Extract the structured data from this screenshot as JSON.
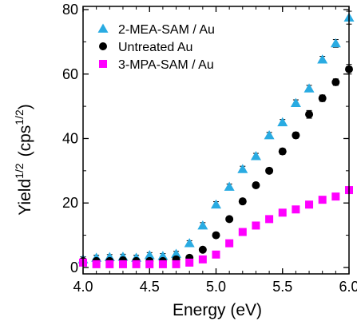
{
  "chart_data": {
    "type": "scatter",
    "xlabel": "Energy (eV)",
    "ylabel": {
      "base": "Yield",
      "base_sup": "1/2",
      "unit": "(cps",
      "unit_sup": "1/2",
      "close": ")"
    },
    "xlim": [
      4.0,
      6.0
    ],
    "ylim": [
      -2,
      81
    ],
    "xticks": [
      4.0,
      4.5,
      5.0,
      5.5,
      6.0
    ],
    "xtick_labels": [
      "4.0",
      "4.5",
      "5.0",
      "5.5",
      "6.0"
    ],
    "yticks": [
      0,
      20,
      40,
      60,
      80
    ],
    "ytick_labels": [
      "0",
      "20",
      "40",
      "60",
      "80"
    ],
    "grid": false,
    "legend_position": "top-left",
    "x": [
      4.0,
      4.1,
      4.2,
      4.3,
      4.4,
      4.5,
      4.6,
      4.7,
      4.8,
      4.9,
      5.0,
      5.1,
      5.2,
      5.3,
      5.4,
      5.5,
      5.6,
      5.7,
      5.8,
      5.9,
      6.0
    ],
    "series": [
      {
        "name": "2-MEA-SAM / Au",
        "marker": "triangle",
        "color": "#29abe2",
        "values": [
          2.5,
          3.0,
          3.2,
          3.3,
          3.0,
          3.8,
          3.5,
          4.2,
          7.5,
          13,
          19.5,
          25,
          30.5,
          34.5,
          41,
          45,
          51,
          55.5,
          64.5,
          69.5,
          77.5
        ],
        "errors": [
          0.8,
          0.8,
          0.8,
          0.8,
          0.8,
          0.8,
          0.8,
          0.8,
          0.8,
          0.9,
          0.9,
          0.9,
          0.9,
          0.9,
          0.9,
          0.9,
          1.0,
          1.0,
          1.0,
          1.2,
          2.0
        ]
      },
      {
        "name": "Untreated Au",
        "marker": "circle",
        "color": "#000000",
        "values": [
          2.0,
          2.0,
          2.0,
          2.2,
          2.0,
          2.0,
          2.0,
          2.5,
          3.0,
          5.5,
          10,
          15,
          20.5,
          25.5,
          30,
          36,
          41,
          47.5,
          52.5,
          57.5,
          61.5
        ],
        "errors": [
          0.6,
          0.6,
          0.6,
          0.6,
          0.6,
          0.6,
          0.6,
          0.6,
          0.7,
          0.7,
          0.8,
          0.8,
          0.8,
          0.8,
          0.8,
          0.9,
          0.9,
          1.2,
          1.0,
          1.0,
          1.5
        ]
      },
      {
        "name": "3-MPA-SAM / Au",
        "marker": "square",
        "color": "#ff00ff",
        "values": [
          1.5,
          1.0,
          1.0,
          1.0,
          1.0,
          1.0,
          1.0,
          1.0,
          1.5,
          2.5,
          4.0,
          7.5,
          11,
          13,
          15,
          17,
          18,
          19.5,
          21,
          22,
          24
        ],
        "errors": [
          0.6,
          0.6,
          0.6,
          0.6,
          0.6,
          0.6,
          0.6,
          0.6,
          0.6,
          0.6,
          0.7,
          0.7,
          0.7,
          0.7,
          0.7,
          0.7,
          0.7,
          0.8,
          0.8,
          0.8,
          1.0
        ]
      }
    ]
  }
}
